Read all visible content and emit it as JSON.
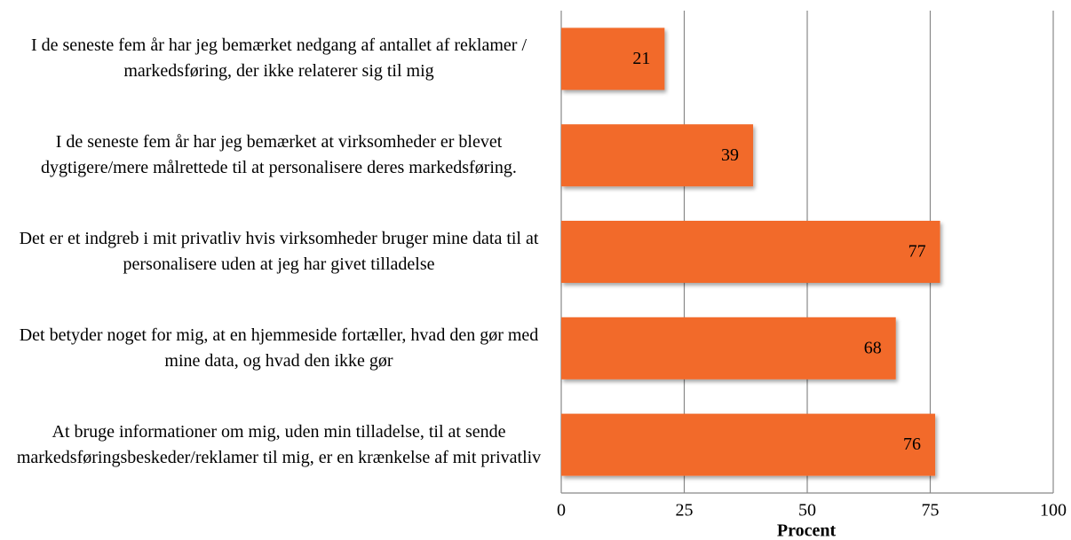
{
  "chart_data": {
    "type": "bar",
    "orientation": "horizontal",
    "categories": [
      "I de seneste fem år har jeg bemærket nedgang af antallet af reklamer / markedsføring, der ikke relaterer sig til mig",
      "I de seneste fem år har jeg bemærket at virksomheder er blevet dygtigere/mere målrettede til at personalisere deres markedsføring.",
      "Det er et indgreb i mit privatliv hvis virksomheder bruger mine data til at personalisere uden at jeg har givet tilladelse",
      "Det betyder noget for mig, at en hjemmeside fortæller, hvad den gør med mine data, og hvad den ikke gør",
      "At bruge informationer om mig, uden min tilladelse, til at sende markedsføringsbeskeder/reklamer til mig, er en krænkelse af mit privatliv"
    ],
    "values": [
      21,
      39,
      77,
      68,
      76
    ],
    "color": "#f26a2a",
    "xlabel": "Procent",
    "xlim": [
      0,
      100
    ],
    "xticks": [
      0,
      25,
      50,
      75,
      100
    ],
    "grid": true
  }
}
